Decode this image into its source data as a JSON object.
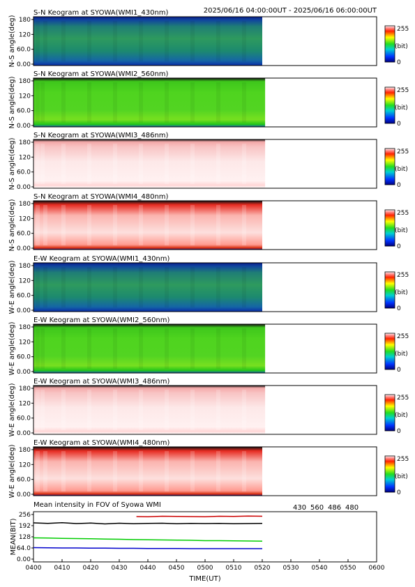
{
  "header": {
    "time_range": "2025/06/16 04:00:00UT - 2025/06/16 06:00:00UT"
  },
  "colorbar": {
    "max_label": "255",
    "unit_label": "(bit)",
    "min_label": "0"
  },
  "keogram_y_ticks": [
    "0.00",
    "60.0",
    "120",
    "180"
  ],
  "keogram_y_tick_values": [
    0,
    60,
    120,
    180
  ],
  "data_end_time": "05:20",
  "panels": [
    {
      "title": "S-N Keogram at SYOWA(WMI1_430nm)",
      "ylabel": "N-S angle(deg)",
      "ytick_labels": [
        "0.00",
        "60.0",
        "120",
        "180"
      ],
      "scheme": "blue",
      "data_end_minute": 80
    },
    {
      "title": "S-N Keogram at SYOWA(WMI2_560nm)",
      "ylabel": "N-S angle(deg)",
      "ytick_labels": [
        "0.00",
        "60.0",
        "120",
        "180"
      ],
      "scheme": "green",
      "data_end_minute": 81
    },
    {
      "title": "S-N Keogram at SYOWA(WMI3_486nm)",
      "ylabel": "N-S angle(deg)",
      "ytick_labels": [
        "0.00",
        "60.0",
        "120",
        "180"
      ],
      "scheme": "white",
      "data_end_minute": 81
    },
    {
      "title": "S-N Keogram at SYOWA(WMI4_480nm)",
      "ylabel": "N-S angle(deg)",
      "ytick_labels": [
        "0.00",
        "60.0",
        "120",
        "180"
      ],
      "scheme": "red",
      "data_end_minute": 80
    },
    {
      "title": "E-W Keogram at SYOWA(WMI1_430nm)",
      "ylabel": "W-E angle(deg)",
      "ytick_labels": [
        "0.00",
        "60.0",
        "120",
        "180"
      ],
      "scheme": "blue",
      "data_end_minute": 80
    },
    {
      "title": "E-W Keogram at SYOWA(WMI2_560nm)",
      "ylabel": "W-E angle(deg)",
      "ytick_labels": [
        "0.00",
        "60.0",
        "120",
        "180"
      ],
      "scheme": "green",
      "data_end_minute": 81
    },
    {
      "title": "E-W Keogram at SYOWA(WMI3_486nm)",
      "ylabel": "W-E angle(deg)",
      "ytick_labels": [
        "0.00",
        "60.0",
        "120",
        "180"
      ],
      "scheme": "white",
      "data_end_minute": 81
    },
    {
      "title": "E-W Keogram at SYOWA(WMI4_480nm)",
      "ylabel": "W-E angle(deg)",
      "ytick_labels": [
        "0.00",
        "60.0",
        "120",
        "180"
      ],
      "scheme": "red",
      "data_end_minute": 80
    }
  ],
  "chart_data": {
    "type": "line",
    "title": "Mean intensity in FOV of Syowa WMI",
    "xlabel": "TIME(UT)",
    "ylabel": "MEAN(BIT)",
    "x_tick_labels": [
      "0400",
      "0410",
      "0420",
      "0430",
      "0440",
      "0450",
      "0500",
      "0510",
      "0520",
      "0530",
      "0540",
      "0550",
      "0600"
    ],
    "xlim_minutes_after_0400": [
      0,
      120
    ],
    "y_tick_labels": [
      "0.00",
      "64.0",
      "128",
      "192",
      "256"
    ],
    "ylim": [
      0,
      256
    ],
    "legend_position": "top-right",
    "series": [
      {
        "name": "430",
        "color": "#0000cc",
        "x": [
          0,
          5,
          10,
          15,
          20,
          25,
          30,
          35,
          40,
          45,
          50,
          55,
          60,
          65,
          70,
          75,
          80
        ],
        "values": [
          66,
          65,
          64,
          64,
          63,
          63,
          62,
          62,
          61,
          61,
          61,
          60,
          60,
          60,
          60,
          60,
          60
        ]
      },
      {
        "name": "560",
        "color": "#00cc00",
        "x": [
          0,
          5,
          10,
          15,
          20,
          25,
          30,
          35,
          40,
          45,
          50,
          55,
          60,
          65,
          70,
          75,
          80
        ],
        "values": [
          122,
          121,
          119,
          118,
          117,
          115,
          114,
          112,
          111,
          110,
          109,
          108,
          106,
          106,
          105,
          104,
          103
        ]
      },
      {
        "name": "486",
        "color": "#cc0000",
        "x": [
          36,
          40,
          45,
          50,
          55,
          60,
          65,
          70,
          75,
          80
        ],
        "values": [
          244,
          243,
          246,
          245,
          244,
          243,
          246,
          245,
          247,
          246
        ]
      },
      {
        "name": "480",
        "color": "#000000",
        "x": [
          0,
          5,
          10,
          15,
          20,
          25,
          30,
          35,
          40,
          45,
          50,
          55,
          60,
          65,
          70,
          75,
          80
        ],
        "values": [
          208,
          205,
          209,
          204,
          207,
          202,
          206,
          203,
          205,
          206,
          203,
          205,
          204,
          205,
          203,
          204,
          205
        ]
      }
    ]
  }
}
